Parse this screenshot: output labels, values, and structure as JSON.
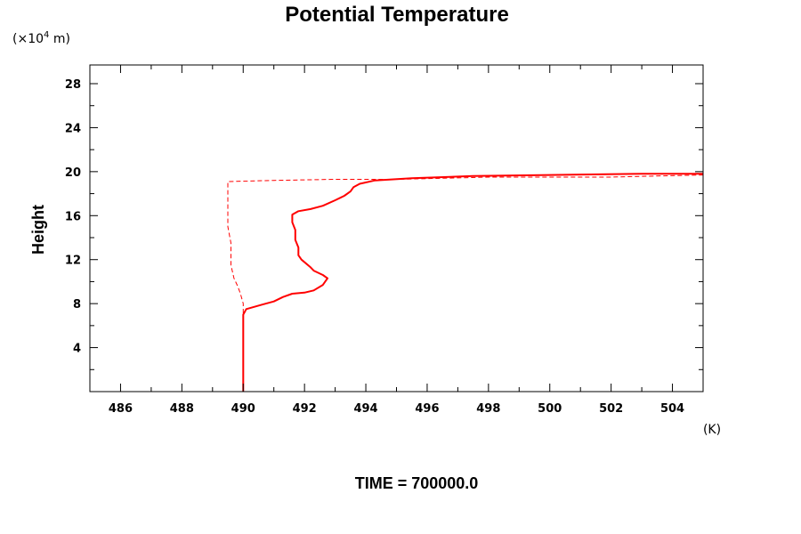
{
  "chart_data": {
    "type": "line",
    "title": "Potential Temperature",
    "xlabel": "",
    "ylabel": "Height",
    "x_unit": "(K)",
    "y_unit_prefix": "(×10",
    "y_unit_exp": "4",
    "y_unit_suffix": " m)",
    "xlim": [
      485,
      505
    ],
    "ylim": [
      0,
      29.7
    ],
    "x_ticks": [
      486,
      488,
      490,
      492,
      494,
      496,
      498,
      500,
      502,
      504
    ],
    "x_tick_labels": [
      "486",
      "488",
      "490",
      "492",
      "494",
      "496",
      "498",
      "500",
      "502",
      "504"
    ],
    "y_ticks": [
      4,
      8,
      12,
      16,
      20,
      24,
      28
    ],
    "y_tick_labels": [
      "4",
      "8",
      "12",
      "16",
      "20",
      "24",
      "28"
    ],
    "grid": false,
    "legend": false,
    "series": [
      {
        "style": "solid",
        "color": "#ff0000",
        "points": [
          [
            490.0,
            0.0
          ],
          [
            490.0,
            7.0
          ],
          [
            490.1,
            7.5
          ],
          [
            490.6,
            7.9
          ],
          [
            491.0,
            8.2
          ],
          [
            491.3,
            8.6
          ],
          [
            491.6,
            8.9
          ],
          [
            492.0,
            9.0
          ],
          [
            492.3,
            9.2
          ],
          [
            492.6,
            9.7
          ],
          [
            492.75,
            10.3
          ],
          [
            492.6,
            10.6
          ],
          [
            492.3,
            11.0
          ],
          [
            492.2,
            11.3
          ],
          [
            491.9,
            12.0
          ],
          [
            491.8,
            12.4
          ],
          [
            491.8,
            13.1
          ],
          [
            491.7,
            13.8
          ],
          [
            491.7,
            14.7
          ],
          [
            491.6,
            15.4
          ],
          [
            491.6,
            16.1
          ],
          [
            491.8,
            16.4
          ],
          [
            492.2,
            16.6
          ],
          [
            492.6,
            16.9
          ],
          [
            493.0,
            17.4
          ],
          [
            493.3,
            17.8
          ],
          [
            493.5,
            18.2
          ],
          [
            493.6,
            18.6
          ],
          [
            493.8,
            18.9
          ],
          [
            494.3,
            19.2
          ],
          [
            495.5,
            19.4
          ],
          [
            497.5,
            19.6
          ],
          [
            500.0,
            19.7
          ],
          [
            503.0,
            19.8
          ],
          [
            505.0,
            19.8
          ]
        ]
      },
      {
        "style": "dashed",
        "color": "#ff0000",
        "points": [
          [
            490.0,
            0.0
          ],
          [
            490.0,
            8.0
          ],
          [
            489.9,
            9.0
          ],
          [
            489.8,
            9.7
          ],
          [
            489.7,
            10.3
          ],
          [
            489.6,
            11.5
          ],
          [
            489.6,
            13.5
          ],
          [
            489.5,
            15.0
          ],
          [
            489.5,
            18.5
          ],
          [
            489.5,
            19.1
          ],
          [
            491.0,
            19.2
          ],
          [
            493.0,
            19.3
          ],
          [
            495.0,
            19.3
          ],
          [
            496.5,
            19.4
          ],
          [
            498.0,
            19.5
          ],
          [
            500.0,
            19.5
          ],
          [
            502.0,
            19.5
          ],
          [
            503.4,
            19.6
          ],
          [
            505.0,
            19.7
          ]
        ]
      }
    ],
    "footer": "TIME = 700000.0"
  }
}
